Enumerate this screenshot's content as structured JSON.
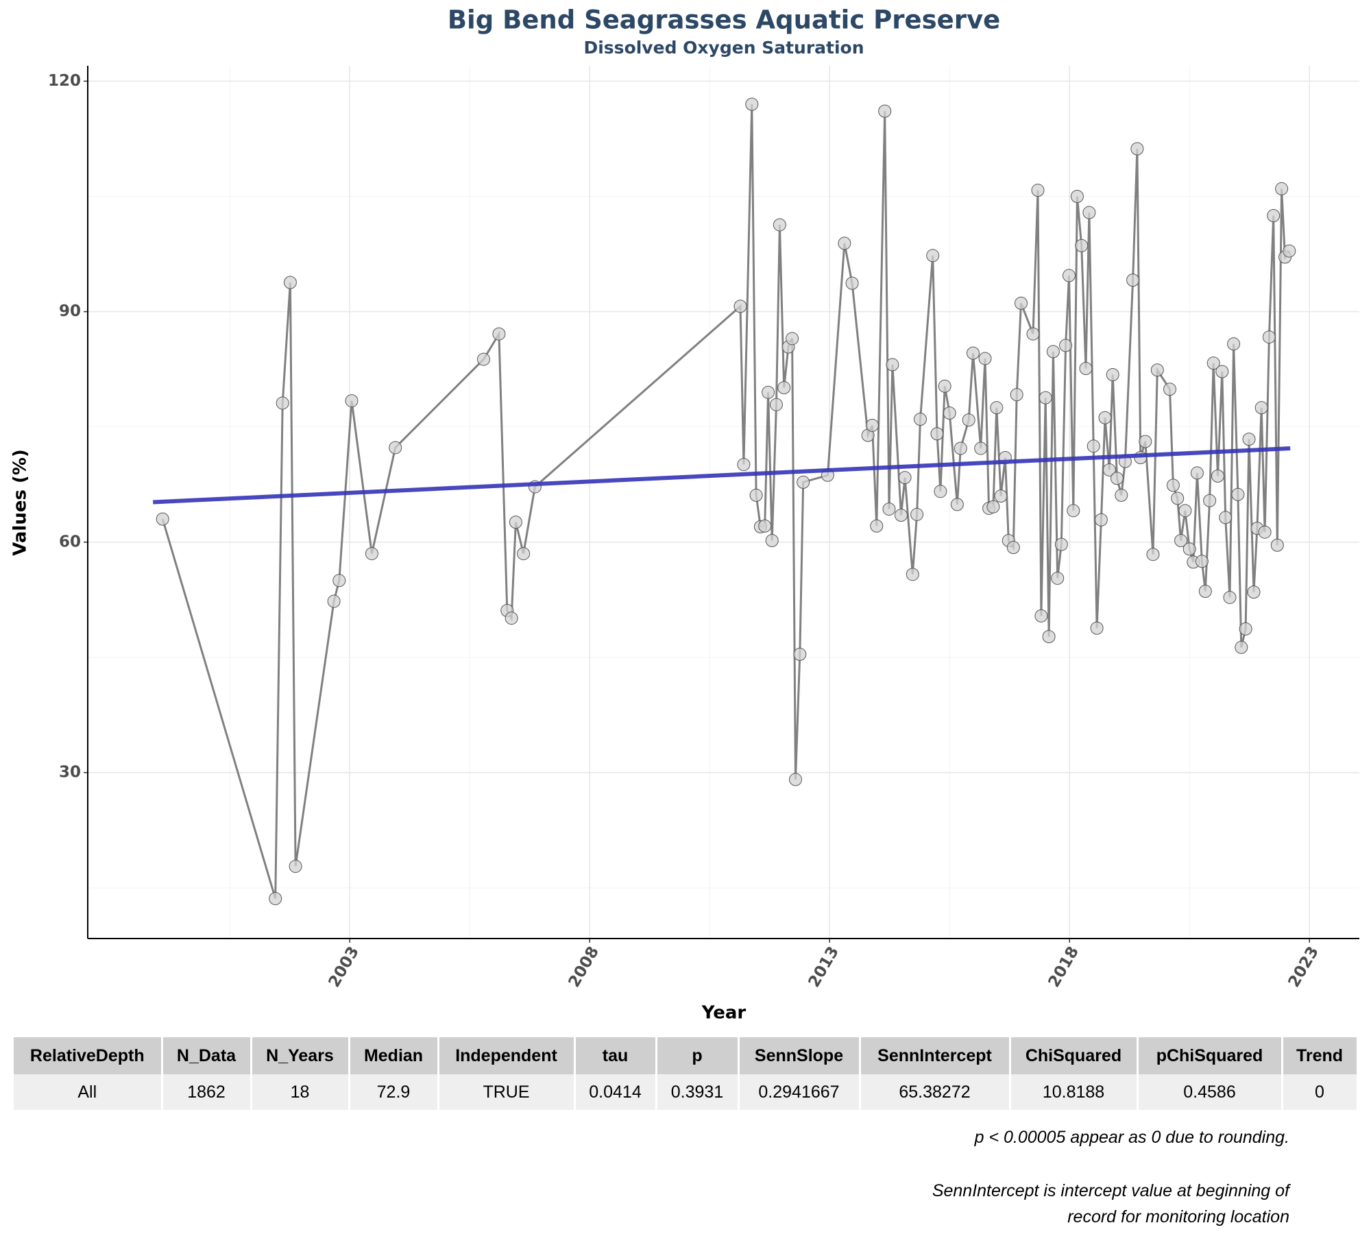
{
  "chart_data": {
    "type": "line",
    "title": "Big Bend Seagrasses Aquatic Preserve",
    "subtitle": "Dissolved Oxygen Saturation",
    "xlabel": "Year",
    "ylabel": "Values (%)",
    "xlim": [
      1997.54,
      2024.04
    ],
    "xticks": [
      2003,
      2008,
      2013,
      2018,
      2023
    ],
    "xminor": [
      2000.5,
      2005.5,
      2010.5,
      2015.5,
      2020.5
    ],
    "ylim": [
      8.4,
      122
    ],
    "yticks": [
      30,
      60,
      90,
      120
    ],
    "yminor": [
      15,
      45,
      75,
      105
    ],
    "grid": true,
    "color": "#808080",
    "marker_color": "#d3d3d3",
    "x": [
      1999.1,
      2001.45,
      2001.6,
      2001.76,
      2001.87,
      2002.67,
      2002.78,
      2003.04,
      2003.46,
      2003.95,
      2005.79,
      2006.11,
      2006.28,
      2006.37,
      2006.46,
      2006.62,
      2006.86,
      2011.14,
      2011.21,
      2011.38,
      2011.47,
      2011.56,
      2011.65,
      2011.72,
      2011.8,
      2011.89,
      2011.96,
      2012.05,
      2012.14,
      2012.22,
      2012.29,
      2012.38,
      2012.45,
      2012.96,
      2013.31,
      2013.47,
      2013.8,
      2013.89,
      2013.98,
      2014.15,
      2014.24,
      2014.31,
      2014.49,
      2014.57,
      2014.73,
      2014.82,
      2014.89,
      2015.15,
      2015.24,
      2015.31,
      2015.4,
      2015.5,
      2015.66,
      2015.73,
      2015.9,
      2015.99,
      2016.15,
      2016.24,
      2016.32,
      2016.41,
      2016.48,
      2016.57,
      2016.66,
      2016.73,
      2016.83,
      2016.9,
      2016.99,
      2017.24,
      2017.34,
      2017.41,
      2017.5,
      2017.57,
      2017.66,
      2017.75,
      2017.83,
      2017.92,
      2017.99,
      2018.08,
      2018.16,
      2018.25,
      2018.34,
      2018.41,
      2018.5,
      2018.57,
      2018.66,
      2018.74,
      2018.83,
      2018.9,
      2018.99,
      2019.08,
      2019.16,
      2019.32,
      2019.41,
      2019.48,
      2019.58,
      2019.74,
      2019.83,
      2020.09,
      2020.16,
      2020.25,
      2020.32,
      2020.41,
      2020.5,
      2020.58,
      2020.66,
      2020.76,
      2020.83,
      2020.92,
      2021.0,
      2021.09,
      2021.18,
      2021.25,
      2021.34,
      2021.42,
      2021.51,
      2021.58,
      2021.67,
      2021.74,
      2021.84,
      2021.91,
      2022.0,
      2022.07,
      2022.16,
      2022.25,
      2022.33,
      2022.42,
      2022.49,
      2022.58
    ],
    "values": [
      63.0,
      13.6,
      78.1,
      93.8,
      17.8,
      52.3,
      55.0,
      78.4,
      58.5,
      72.3,
      83.8,
      87.1,
      51.1,
      50.1,
      62.6,
      58.5,
      67.2,
      90.7,
      70.1,
      117.0,
      66.1,
      62.0,
      62.1,
      79.5,
      60.2,
      77.9,
      101.3,
      80.1,
      85.4,
      86.5,
      29.1,
      45.4,
      67.8,
      68.7,
      98.9,
      93.7,
      73.9,
      75.2,
      62.1,
      116.1,
      64.3,
      83.1,
      63.5,
      68.4,
      55.8,
      63.6,
      76.0,
      97.3,
      74.1,
      66.6,
      80.3,
      76.8,
      64.9,
      72.2,
      75.9,
      84.6,
      72.2,
      83.9,
      64.4,
      64.6,
      77.5,
      66.0,
      71.0,
      60.2,
      59.3,
      79.2,
      91.1,
      87.1,
      105.8,
      50.4,
      78.8,
      47.7,
      84.8,
      55.3,
      59.7,
      85.6,
      94.7,
      64.1,
      105.0,
      98.6,
      82.6,
      102.9,
      72.5,
      48.8,
      62.9,
      76.2,
      69.4,
      81.8,
      68.3,
      66.1,
      70.5,
      94.1,
      111.2,
      71.0,
      73.1,
      58.4,
      82.4,
      79.9,
      67.4,
      65.7,
      60.2,
      64.1,
      59.1,
      57.4,
      69.0,
      57.5,
      53.6,
      65.4,
      83.3,
      68.6,
      82.2,
      63.2,
      52.8,
      85.8,
      66.2,
      46.3,
      48.7,
      73.4,
      53.5,
      61.8,
      77.5,
      61.3,
      86.7,
      102.5,
      59.6,
      106.0,
      97.1,
      97.9
    ],
    "trend": {
      "color": "#3333b8",
      "x": [
        1998.9,
        2022.6
      ],
      "values": [
        65.2,
        72.2
      ]
    }
  },
  "table": {
    "header": [
      "RelativeDepth",
      "N_Data",
      "N_Years",
      "Median",
      "Independent",
      "tau",
      "p",
      "SennSlope",
      "SennIntercept",
      "ChiSquared",
      "pChiSquared",
      "Trend"
    ],
    "rows": [
      [
        "All",
        "1862",
        "18",
        "72.9",
        "TRUE",
        "0.0414",
        "0.3931",
        "0.2941667",
        "65.38272",
        "10.8188",
        "0.4586",
        "0"
      ]
    ]
  },
  "notes": [
    [
      "p < 0.00005 appear as 0 due to rounding."
    ],
    [
      "SennIntercept is intercept value at beginning of",
      "record for monitoring location"
    ]
  ]
}
